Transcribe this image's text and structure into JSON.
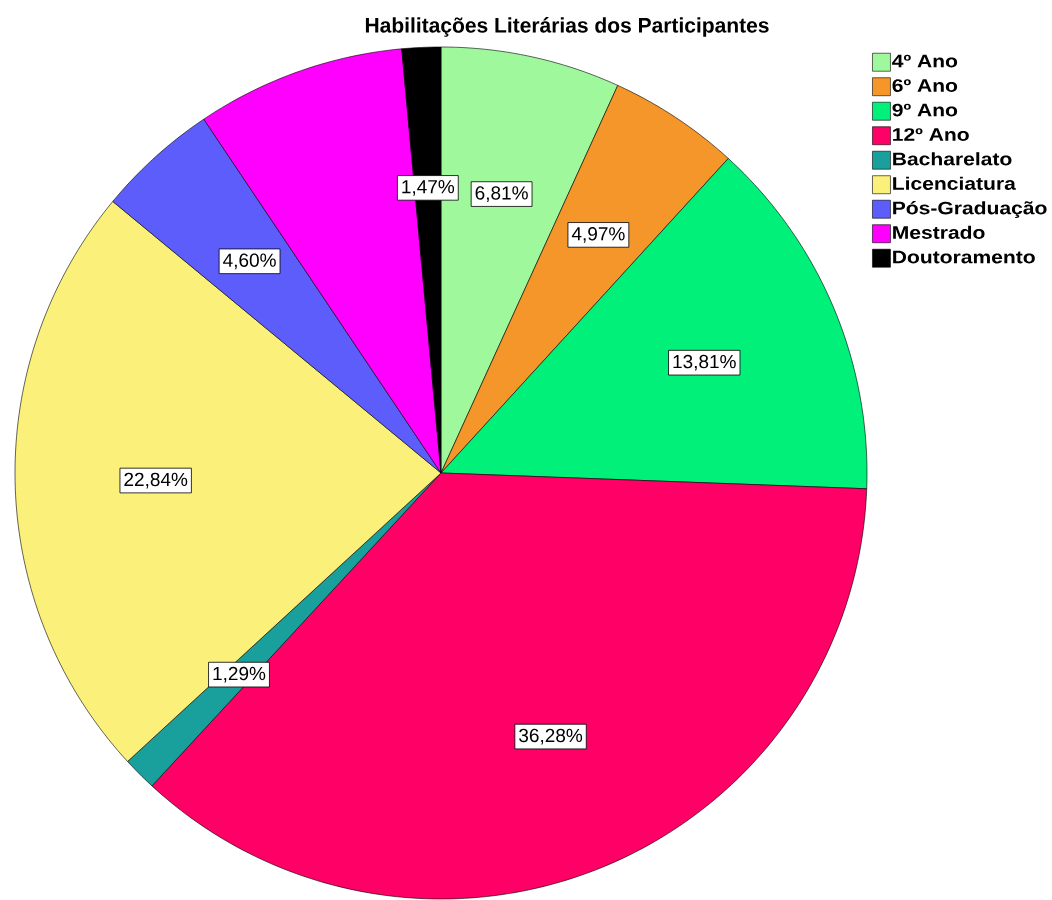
{
  "chart_data": {
    "type": "pie",
    "title": "Habilitações Literárias dos Participantes",
    "categories": [
      "4º Ano",
      "6º Ano",
      "9º Ano",
      "12º Ano",
      "Bacharelato",
      "Licenciatura",
      "Pós-Graduação",
      "Mestrado",
      "Doutoramento"
    ],
    "values": [
      6.81,
      4.97,
      13.81,
      36.28,
      1.29,
      22.84,
      4.6,
      7.93,
      1.47
    ],
    "colors": [
      "#a0f89c",
      "#f5962a",
      "#00f07a",
      "#ff0066",
      "#1aa09c",
      "#fbf17a",
      "#5d5dfb",
      "#ff00ff",
      "#000000"
    ],
    "value_labels": [
      "6,81%",
      "4,97%",
      "13,81%",
      "36,28%",
      "1,29%",
      "22,84%",
      "4,60%",
      null,
      "1,47%"
    ],
    "legend": "top right"
  }
}
